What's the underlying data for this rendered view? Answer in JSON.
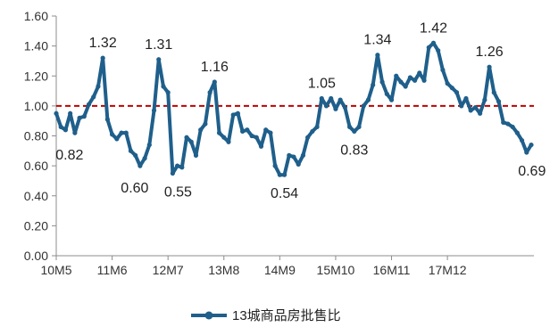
{
  "chart_data": {
    "type": "line",
    "title": "",
    "xlabel": "",
    "ylabel": "",
    "ylim": [
      0,
      1.6
    ],
    "y_ticks": [
      "0.00",
      "0.20",
      "0.40",
      "0.60",
      "0.80",
      "1.00",
      "1.20",
      "1.40",
      "1.60"
    ],
    "x_tick_labels": [
      "10M5",
      "11M6",
      "12M7",
      "13M8",
      "14M9",
      "15M10",
      "16M11",
      "17M12"
    ],
    "reference_line": {
      "y": 1.0,
      "color": "#c00000",
      "style": "dashed"
    },
    "grid": false,
    "legend": "bottom-center",
    "series": [
      {
        "name": "13城商品房批售比",
        "color": "#1f5f8b",
        "marker": "circle",
        "values": [
          0.95,
          0.86,
          0.84,
          0.95,
          0.82,
          0.92,
          0.93,
          1.01,
          1.06,
          1.13,
          1.32,
          0.91,
          0.81,
          0.78,
          0.82,
          0.82,
          0.7,
          0.67,
          0.6,
          0.65,
          0.74,
          0.97,
          1.31,
          1.13,
          1.09,
          0.55,
          0.6,
          0.59,
          0.79,
          0.76,
          0.67,
          0.84,
          0.88,
          1.09,
          1.16,
          0.82,
          0.79,
          0.76,
          0.94,
          0.95,
          0.83,
          0.84,
          0.8,
          0.79,
          0.73,
          0.84,
          0.82,
          0.6,
          0.54,
          0.54,
          0.67,
          0.66,
          0.61,
          0.67,
          0.79,
          0.83,
          0.86,
          1.05,
          1.0,
          1.05,
          0.98,
          1.04,
          0.99,
          0.86,
          0.83,
          0.86,
          1.0,
          1.04,
          1.14,
          1.34,
          1.16,
          1.08,
          1.04,
          1.2,
          1.16,
          1.13,
          1.19,
          1.17,
          1.22,
          1.17,
          1.39,
          1.42,
          1.37,
          1.24,
          1.15,
          1.12,
          1.09,
          1.0,
          1.05,
          0.97,
          0.99,
          0.95,
          1.04,
          1.26,
          1.09,
          1.03,
          0.89,
          0.88,
          0.86,
          0.82,
          0.77,
          0.69,
          0.74
        ]
      }
    ],
    "data_labels": [
      {
        "index": 4,
        "text": "0.82",
        "pos": "below-left"
      },
      {
        "index": 10,
        "text": "1.32",
        "pos": "above"
      },
      {
        "index": 18,
        "text": "0.60",
        "pos": "below-left"
      },
      {
        "index": 22,
        "text": "1.31",
        "pos": "above"
      },
      {
        "index": 25,
        "text": "0.55",
        "pos": "below-right"
      },
      {
        "index": 34,
        "text": "1.16",
        "pos": "above"
      },
      {
        "index": 49,
        "text": "0.54",
        "pos": "below"
      },
      {
        "index": 57,
        "text": "1.05",
        "pos": "above"
      },
      {
        "index": 64,
        "text": "0.83",
        "pos": "below"
      },
      {
        "index": 69,
        "text": "1.34",
        "pos": "above"
      },
      {
        "index": 81,
        "text": "1.42",
        "pos": "above"
      },
      {
        "index": 93,
        "text": "1.26",
        "pos": "above"
      },
      {
        "index": 101,
        "text": "0.69",
        "pos": "below-right"
      }
    ]
  }
}
